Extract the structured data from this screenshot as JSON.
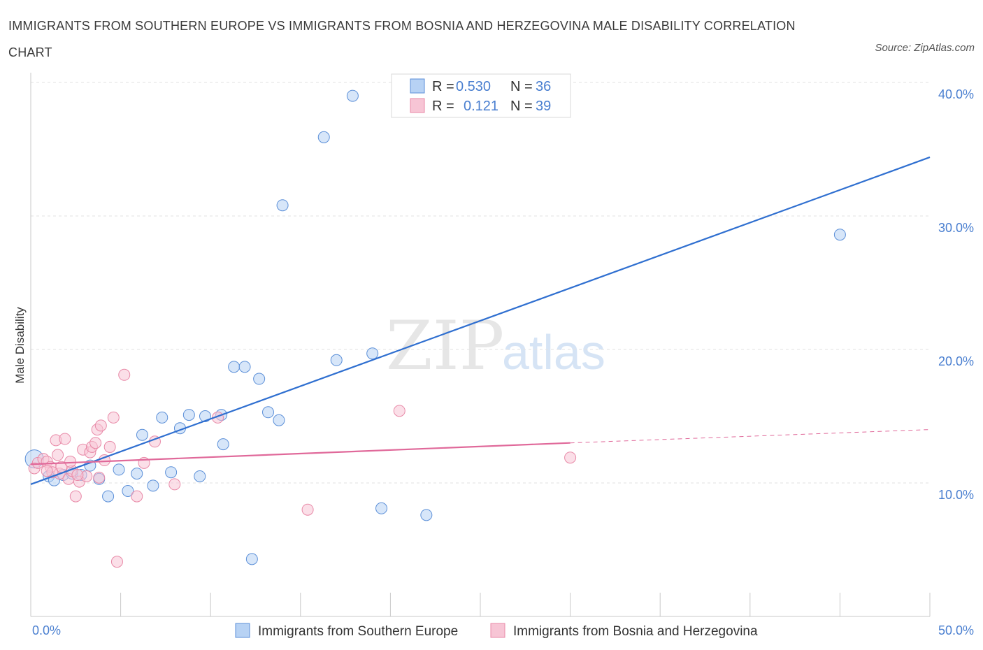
{
  "header": {
    "title": "IMMIGRANTS FROM SOUTHERN EUROPE VS IMMIGRANTS FROM BOSNIA AND HERZEGOVINA MALE DISABILITY CORRELATION CHART",
    "source": "Source: ZipAtlas.com"
  },
  "watermark": {
    "zip": "ZIP",
    "atlas": "atlas"
  },
  "colors": {
    "blue_fill": "#b7d2f4",
    "blue_stroke": "#5b8fd8",
    "blue_line": "#2f6fd0",
    "pink_fill": "#f7c5d5",
    "pink_stroke": "#e889a7",
    "pink_line": "#e0699a",
    "tick_text": "#4a7fd0",
    "grid": "#e2e2e2"
  },
  "stats": [
    {
      "r_label": "R =",
      "r_value": "0.530",
      "n_label": "N =",
      "n_value": "36"
    },
    {
      "r_label": "R =",
      "r_value": "0.121",
      "n_label": "N =",
      "n_value": "39"
    }
  ],
  "chart_data": {
    "type": "scatter",
    "title": "IMMIGRANTS FROM SOUTHERN EUROPE VS IMMIGRANTS FROM BOSNIA AND HERZEGOVINA MALE DISABILITY CORRELATION CHART",
    "xlabel": "",
    "ylabel": "Male Disability",
    "xlim": [
      0,
      50
    ],
    "ylim": [
      0,
      40
    ],
    "x_tick_labels": [
      "0.0%",
      "50.0%"
    ],
    "y_ticks": [
      10,
      20,
      30,
      40
    ],
    "y_tick_labels": [
      "10.0%",
      "20.0%",
      "30.0%",
      "40.0%"
    ],
    "grid": true,
    "legend_position": "bottom",
    "series": [
      {
        "name": "Immigrants from Southern Europe",
        "color": "#5b8fd8",
        "trend": {
          "x": [
            0,
            50
          ],
          "y": [
            9.9,
            34.4
          ]
        },
        "points": [
          [
            0.2,
            11.8
          ],
          [
            1.0,
            10.5
          ],
          [
            1.3,
            10.2
          ],
          [
            1.8,
            10.6
          ],
          [
            2.3,
            10.7
          ],
          [
            2.8,
            10.6
          ],
          [
            3.3,
            11.3
          ],
          [
            3.8,
            10.3
          ],
          [
            4.3,
            9.0
          ],
          [
            4.9,
            11.0
          ],
          [
            5.4,
            9.4
          ],
          [
            5.9,
            10.7
          ],
          [
            6.2,
            13.6
          ],
          [
            6.8,
            9.8
          ],
          [
            7.3,
            14.9
          ],
          [
            7.8,
            10.8
          ],
          [
            8.3,
            14.1
          ],
          [
            8.8,
            15.1
          ],
          [
            9.4,
            10.5
          ],
          [
            9.7,
            15.0
          ],
          [
            10.6,
            15.1
          ],
          [
            10.7,
            12.9
          ],
          [
            11.3,
            18.7
          ],
          [
            11.9,
            18.7
          ],
          [
            12.7,
            17.8
          ],
          [
            12.3,
            4.3
          ],
          [
            13.2,
            15.3
          ],
          [
            13.8,
            14.7
          ],
          [
            14.0,
            30.8
          ],
          [
            16.3,
            35.9
          ],
          [
            17.0,
            19.2
          ],
          [
            17.9,
            39.0
          ],
          [
            19.0,
            19.7
          ],
          [
            19.5,
            8.1
          ],
          [
            22.0,
            7.6
          ],
          [
            45.0,
            28.6
          ]
        ]
      },
      {
        "name": "Immigrants from Bosnia and Herzegovina",
        "color": "#e889a7",
        "trend": {
          "x": [
            0,
            30
          ],
          "y": [
            11.4,
            13.0
          ]
        },
        "trend_extension": {
          "x": [
            30,
            50
          ],
          "y": [
            13.0,
            14.0
          ]
        },
        "points": [
          [
            0.2,
            11.1
          ],
          [
            0.4,
            11.5
          ],
          [
            0.7,
            11.8
          ],
          [
            0.9,
            11.6
          ],
          [
            1.1,
            11.2
          ],
          [
            1.4,
            13.2
          ],
          [
            1.6,
            10.7
          ],
          [
            1.7,
            11.2
          ],
          [
            1.9,
            13.3
          ],
          [
            2.1,
            10.3
          ],
          [
            2.3,
            10.9
          ],
          [
            2.5,
            9.0
          ],
          [
            2.7,
            10.1
          ],
          [
            2.9,
            12.5
          ],
          [
            3.1,
            10.5
          ],
          [
            3.3,
            12.3
          ],
          [
            3.4,
            12.7
          ],
          [
            3.6,
            13.0
          ],
          [
            3.7,
            14.0
          ],
          [
            3.9,
            14.3
          ],
          [
            4.1,
            11.7
          ],
          [
            4.4,
            12.7
          ],
          [
            4.6,
            14.9
          ],
          [
            4.8,
            4.1
          ],
          [
            5.2,
            18.1
          ],
          [
            5.9,
            9.0
          ],
          [
            6.3,
            11.5
          ],
          [
            6.9,
            13.1
          ],
          [
            8.0,
            9.9
          ],
          [
            10.4,
            14.9
          ],
          [
            15.4,
            8.0
          ],
          [
            20.5,
            15.4
          ],
          [
            30.0,
            11.9
          ],
          [
            1.2,
            10.8
          ],
          [
            2.6,
            10.6
          ],
          [
            3.8,
            10.4
          ],
          [
            1.5,
            12.1
          ],
          [
            0.9,
            10.9
          ],
          [
            2.2,
            11.6
          ]
        ]
      }
    ]
  },
  "legend": {
    "items": [
      {
        "label": "Immigrants from Southern Europe"
      },
      {
        "label": "Immigrants from Bosnia and Herzegovina"
      }
    ]
  }
}
